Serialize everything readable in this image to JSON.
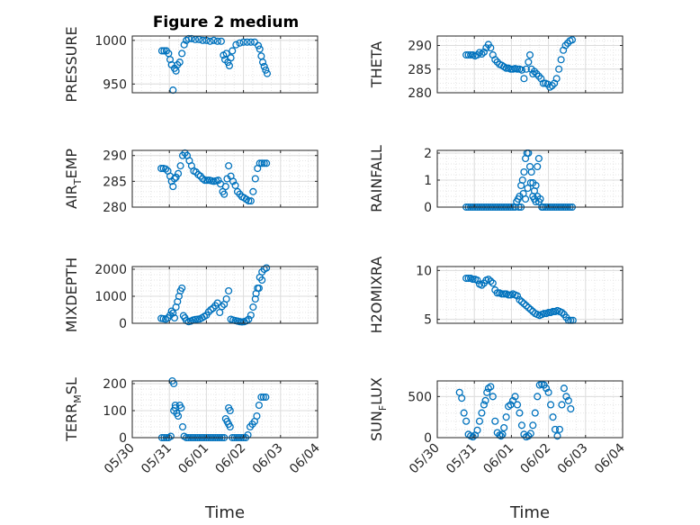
{
  "figure_title": "Figure 2 medium",
  "colors": {
    "marker": "#0072BD",
    "axis": "#262626",
    "grid_major": "#dcdcdc",
    "grid_minor": "#e6e6e6"
  },
  "chart_data": [
    {
      "type": "scatter",
      "title": "Figure 2 medium",
      "ylabel": "PRESSURE",
      "xlabel": "",
      "x_ticks": [
        "05/30",
        "05/31",
        "06/01",
        "06/02",
        "06/03",
        "06/04"
      ],
      "xlim": [
        0,
        5
      ],
      "ylim": [
        940,
        1005
      ],
      "y_ticks": [
        950,
        1000
      ],
      "grid": true,
      "series": [
        {
          "x": [
            0.8,
            0.86,
            0.92,
            0.98,
            1.02,
            1.06,
            1.1,
            1.14,
            1.18,
            1.22,
            1.28,
            1.34,
            1.4,
            1.46,
            1.52,
            1.6,
            1.7,
            1.8,
            1.9,
            2.0,
            2.1,
            2.2,
            2.3,
            2.4,
            2.46,
            2.5,
            2.54,
            2.58,
            2.62,
            2.66,
            2.7,
            2.8,
            2.9,
            3.0,
            3.1,
            3.2,
            3.3,
            3.4,
            3.44,
            3.48,
            3.52,
            3.56,
            3.6,
            3.64
          ],
          "y": [
            988,
            988,
            988,
            985,
            978,
            972,
            943,
            968,
            965,
            972,
            975,
            985,
            995,
            1000,
            1002,
            1002,
            1001,
            1001,
            1000,
            1000,
            999,
            1000,
            999,
            999,
            983,
            978,
            985,
            975,
            971,
            980,
            988,
            995,
            997,
            998,
            998,
            998,
            998,
            994,
            990,
            982,
            975,
            970,
            966,
            962
          ]
        }
      ]
    },
    {
      "type": "scatter",
      "ylabel": "THETA",
      "xlabel": "",
      "x_ticks": [
        "05/30",
        "05/31",
        "06/01",
        "06/02",
        "06/03",
        "06/04"
      ],
      "xlim": [
        0,
        5
      ],
      "ylim": [
        280,
        292
      ],
      "y_ticks": [
        280,
        285,
        290
      ],
      "grid": true,
      "series": [
        {
          "x": [
            0.78,
            0.84,
            0.9,
            0.96,
            1.02,
            1.08,
            1.14,
            1.2,
            1.26,
            1.32,
            1.38,
            1.44,
            1.5,
            1.56,
            1.62,
            1.68,
            1.74,
            1.8,
            1.86,
            1.92,
            1.98,
            2.04,
            2.1,
            2.16,
            2.22,
            2.28,
            2.34,
            2.4,
            2.46,
            2.5,
            2.54,
            2.58,
            2.62,
            2.68,
            2.74,
            2.8,
            2.86,
            2.92,
            2.98,
            3.04,
            3.1,
            3.16,
            3.22,
            3.28,
            3.34,
            3.4,
            3.46,
            3.52,
            3.58,
            3.64
          ],
          "y": [
            288,
            288,
            288,
            288,
            287.8,
            288,
            288.5,
            288.2,
            288.6,
            289.5,
            290.2,
            289.5,
            288,
            287,
            286.5,
            286,
            285.8,
            285.5,
            285.2,
            285.2,
            285,
            285,
            285.1,
            285,
            285,
            284.8,
            283,
            285,
            286.5,
            288,
            285,
            284,
            284.5,
            284,
            283.5,
            283,
            282,
            282,
            281.8,
            281.2,
            281.5,
            282,
            283,
            285,
            287,
            289,
            290,
            290.5,
            291,
            291.2
          ]
        }
      ]
    },
    {
      "type": "scatter",
      "ylabel": "AIR_TEMP",
      "ylabel_main": "AIR",
      "ylabel_sub": "T",
      "ylabel_rest": "EMP",
      "xlabel": "",
      "x_ticks": [
        "05/30",
        "05/31",
        "06/01",
        "06/02",
        "06/03",
        "06/04"
      ],
      "xlim": [
        0,
        5
      ],
      "ylim": [
        280,
        291
      ],
      "y_ticks": [
        280,
        285,
        290
      ],
      "grid": true,
      "series": [
        {
          "x": [
            0.78,
            0.84,
            0.9,
            0.96,
            1.02,
            1.06,
            1.1,
            1.14,
            1.18,
            1.24,
            1.3,
            1.36,
            1.42,
            1.48,
            1.54,
            1.6,
            1.66,
            1.72,
            1.78,
            1.84,
            1.9,
            1.96,
            2.02,
            2.08,
            2.14,
            2.2,
            2.26,
            2.32,
            2.38,
            2.44,
            2.48,
            2.52,
            2.56,
            2.6,
            2.66,
            2.72,
            2.78,
            2.84,
            2.9,
            2.96,
            3.02,
            3.08,
            3.14,
            3.2,
            3.26,
            3.32,
            3.38,
            3.44,
            3.5,
            3.56,
            3.62
          ],
          "y": [
            287.5,
            287.5,
            287.4,
            287,
            286,
            285,
            284,
            285.5,
            285.8,
            286.5,
            288,
            290,
            290.5,
            290,
            289,
            288,
            287,
            286.8,
            286.3,
            286,
            285.5,
            285.2,
            285.2,
            285.2,
            285.1,
            285,
            285.1,
            285.2,
            284.5,
            283,
            282.5,
            284,
            285.5,
            288,
            286,
            285,
            284.2,
            283,
            282.5,
            282,
            281.8,
            281.5,
            281.2,
            281.2,
            283,
            285.5,
            287.5,
            288.5,
            288.5,
            288.5,
            288.5
          ]
        }
      ]
    },
    {
      "type": "scatter",
      "ylabel": "RAINFALL",
      "xlabel": "",
      "x_ticks": [
        "05/30",
        "05/31",
        "06/01",
        "06/02",
        "06/03",
        "06/04"
      ],
      "xlim": [
        0,
        5
      ],
      "ylim": [
        0,
        2.1
      ],
      "y_ticks": [
        0,
        1,
        2
      ],
      "grid": true,
      "series": [
        {
          "x": [
            0.78,
            0.84,
            0.9,
            0.96,
            1.02,
            1.08,
            1.14,
            1.2,
            1.26,
            1.32,
            1.38,
            1.44,
            1.5,
            1.56,
            1.62,
            1.68,
            1.74,
            1.8,
            1.86,
            1.92,
            1.98,
            2.04,
            2.1,
            2.14,
            2.18,
            2.22,
            2.26,
            2.3,
            2.34,
            2.38,
            2.42,
            2.46,
            2.5,
            2.54,
            2.58,
            2.62,
            2.66,
            2.7,
            2.74,
            2.78,
            2.82,
            2.86,
            2.92,
            2.98,
            3.04,
            3.1,
            3.16,
            3.22,
            3.28,
            3.34,
            3.4,
            3.46,
            3.52,
            3.58,
            3.64,
            2.2,
            2.26,
            2.32,
            2.38,
            2.44,
            2.52,
            2.58,
            2.62,
            2.66,
            2.7,
            2.74
          ],
          "y": [
            0,
            0,
            0,
            0,
            0,
            0,
            0,
            0,
            0,
            0,
            0,
            0,
            0,
            0,
            0,
            0,
            0,
            0,
            0,
            0,
            0,
            0,
            0,
            0.2,
            0.3,
            0.4,
            0.8,
            1.0,
            1.3,
            1.8,
            2.0,
            2.0,
            1.5,
            1.3,
            0.9,
            0.6,
            0.8,
            1.5,
            1.8,
            0.3,
            0,
            0,
            0,
            0,
            0,
            0,
            0,
            0,
            0,
            0,
            0,
            0,
            0,
            0,
            0,
            0,
            0,
            0.5,
            0.3,
            0.7,
            0.9,
            0.4,
            0.3,
            0.2,
            0.4,
            0.2
          ]
        }
      ]
    },
    {
      "type": "scatter",
      "ylabel": "MIXDEPTH",
      "xlabel": "",
      "x_ticks": [
        "05/30",
        "05/31",
        "06/01",
        "06/02",
        "06/03",
        "06/04"
      ],
      "xlim": [
        0,
        5
      ],
      "ylim": [
        0,
        2100
      ],
      "y_ticks": [
        0,
        1000,
        2000
      ],
      "grid": true,
      "series": [
        {
          "x": [
            0.78,
            0.84,
            0.9,
            0.96,
            1.02,
            1.06,
            1.1,
            1.14,
            1.18,
            1.22,
            1.26,
            1.3,
            1.34,
            1.38,
            1.42,
            1.46,
            1.52,
            1.58,
            1.64,
            1.7,
            1.76,
            1.82,
            1.88,
            1.94,
            2.0,
            2.06,
            2.12,
            2.18,
            2.24,
            2.3,
            2.36,
            2.42,
            2.48,
            2.54,
            2.6,
            2.66,
            2.72,
            2.78,
            2.84,
            2.9,
            2.96,
            3.02,
            3.08,
            3.14,
            3.2,
            3.26,
            3.32,
            3.38,
            3.44,
            3.5,
            3.56,
            3.62,
            3.34,
            3.42,
            3.5
          ],
          "y": [
            180,
            170,
            150,
            200,
            300,
            450,
            380,
            200,
            600,
            800,
            1000,
            1200,
            1300,
            280,
            200,
            100,
            60,
            80,
            120,
            140,
            150,
            160,
            200,
            250,
            300,
            420,
            500,
            560,
            650,
            750,
            400,
            620,
            700,
            900,
            1200,
            150,
            120,
            100,
            80,
            60,
            50,
            60,
            90,
            150,
            300,
            600,
            900,
            1300,
            1700,
            1900,
            2000,
            2050,
            1100,
            1300,
            1600
          ]
        }
      ]
    },
    {
      "type": "scatter",
      "ylabel": "H2OMIXRA",
      "xlabel": "",
      "x_ticks": [
        "05/30",
        "05/31",
        "06/01",
        "06/02",
        "06/03",
        "06/04"
      ],
      "xlim": [
        0,
        5
      ],
      "ylim": [
        4.6,
        10.4
      ],
      "y_ticks": [
        5,
        10
      ],
      "grid": true,
      "series": [
        {
          "x": [
            0.78,
            0.84,
            0.9,
            0.96,
            1.02,
            1.08,
            1.14,
            1.2,
            1.26,
            1.32,
            1.38,
            1.44,
            1.5,
            1.56,
            1.62,
            1.68,
            1.74,
            1.8,
            1.86,
            1.92,
            1.98,
            2.04,
            2.1,
            2.16,
            2.22,
            2.28,
            2.34,
            2.4,
            2.46,
            2.52,
            2.58,
            2.64,
            2.7,
            2.76,
            2.82,
            2.88,
            2.94,
            3.0,
            3.06,
            3.12,
            3.18,
            3.24,
            3.3,
            3.36,
            3.42,
            3.48,
            3.54,
            3.6,
            3.66
          ],
          "y": [
            9.2,
            9.2,
            9.2,
            9.1,
            9.1,
            9.0,
            8.6,
            8.5,
            8.7,
            9.0,
            9.1,
            8.9,
            8.7,
            8.0,
            7.7,
            7.7,
            7.6,
            7.6,
            7.6,
            7.5,
            7.5,
            7.6,
            7.5,
            7.4,
            7.0,
            6.8,
            6.6,
            6.4,
            6.2,
            6.0,
            5.8,
            5.6,
            5.5,
            5.4,
            5.5,
            5.6,
            5.6,
            5.7,
            5.7,
            5.8,
            5.8,
            5.9,
            5.8,
            5.7,
            5.5,
            5.2,
            4.9,
            4.9,
            4.9
          ]
        }
      ]
    },
    {
      "type": "scatter",
      "ylabel": "TERR_MSL",
      "ylabel_main": "TERR",
      "ylabel_sub": "M",
      "ylabel_rest": "SL",
      "xlabel": "Time",
      "x_ticks": [
        "05/30",
        "05/31",
        "06/01",
        "06/02",
        "06/03",
        "06/04"
      ],
      "xlim": [
        0,
        5
      ],
      "ylim": [
        0,
        210
      ],
      "y_ticks": [
        0,
        100,
        200
      ],
      "grid": true,
      "series": [
        {
          "x": [
            0.8,
            0.86,
            0.92,
            0.98,
            1.04,
            1.08,
            1.12,
            1.16,
            1.2,
            1.24,
            1.28,
            1.32,
            1.36,
            1.4,
            1.46,
            1.52,
            1.58,
            1.64,
            1.7,
            1.76,
            1.82,
            1.88,
            1.94,
            2.0,
            2.06,
            2.12,
            2.18,
            2.24,
            2.3,
            2.36,
            2.42,
            2.48,
            2.52,
            2.56,
            2.6,
            2.64,
            2.7,
            2.76,
            2.82,
            2.88,
            2.94,
            3.0,
            3.06,
            3.12,
            3.18,
            3.24,
            3.3,
            3.36,
            3.42,
            3.48,
            3.54,
            3.6,
            2.6,
            2.64,
            1.12,
            1.16
          ],
          "y": [
            0,
            0,
            0,
            0,
            5,
            210,
            200,
            110,
            90,
            80,
            120,
            110,
            40,
            5,
            0,
            0,
            0,
            0,
            0,
            0,
            0,
            0,
            0,
            0,
            0,
            0,
            0,
            0,
            0,
            0,
            0,
            0,
            70,
            60,
            110,
            100,
            0,
            0,
            0,
            0,
            0,
            0,
            0,
            10,
            40,
            50,
            60,
            80,
            120,
            150,
            150,
            150,
            50,
            40,
            100,
            120
          ]
        }
      ]
    },
    {
      "type": "scatter",
      "ylabel": "SUN_FLUX",
      "ylabel_main": "SUN",
      "ylabel_sub": "F",
      "ylabel_rest": "LUX",
      "xlabel": "Time",
      "x_ticks": [
        "05/30",
        "05/31",
        "06/01",
        "06/02",
        "06/03",
        "06/04"
      ],
      "xlim": [
        0,
        5
      ],
      "ylim": [
        0,
        690
      ],
      "y_ticks": [
        0,
        500
      ],
      "grid": true,
      "series": [
        {
          "x": [
            0.6,
            0.66,
            0.72,
            0.78,
            0.84,
            0.9,
            0.96,
            1.02,
            1.08,
            1.14,
            1.2,
            1.26,
            1.3,
            1.34,
            1.38,
            1.44,
            1.5,
            1.56,
            1.62,
            1.68,
            1.72,
            1.76,
            1.8,
            1.86,
            1.92,
            1.98,
            2.04,
            2.1,
            2.16,
            2.22,
            2.28,
            2.34,
            2.4,
            2.46,
            2.52,
            2.58,
            2.64,
            2.7,
            2.76,
            2.82,
            2.88,
            2.94,
            3.0,
            3.06,
            3.12,
            3.18,
            3.24,
            3.3,
            3.36,
            3.42,
            3.48,
            3.54,
            3.6
          ],
          "y": [
            550,
            480,
            300,
            200,
            40,
            20,
            10,
            30,
            90,
            200,
            300,
            400,
            450,
            550,
            600,
            620,
            500,
            200,
            60,
            30,
            20,
            40,
            120,
            250,
            380,
            400,
            450,
            500,
            400,
            300,
            150,
            40,
            10,
            20,
            50,
            150,
            300,
            500,
            640,
            650,
            640,
            600,
            550,
            400,
            250,
            100,
            20,
            100,
            400,
            600,
            500,
            450,
            350
          ]
        }
      ]
    }
  ]
}
